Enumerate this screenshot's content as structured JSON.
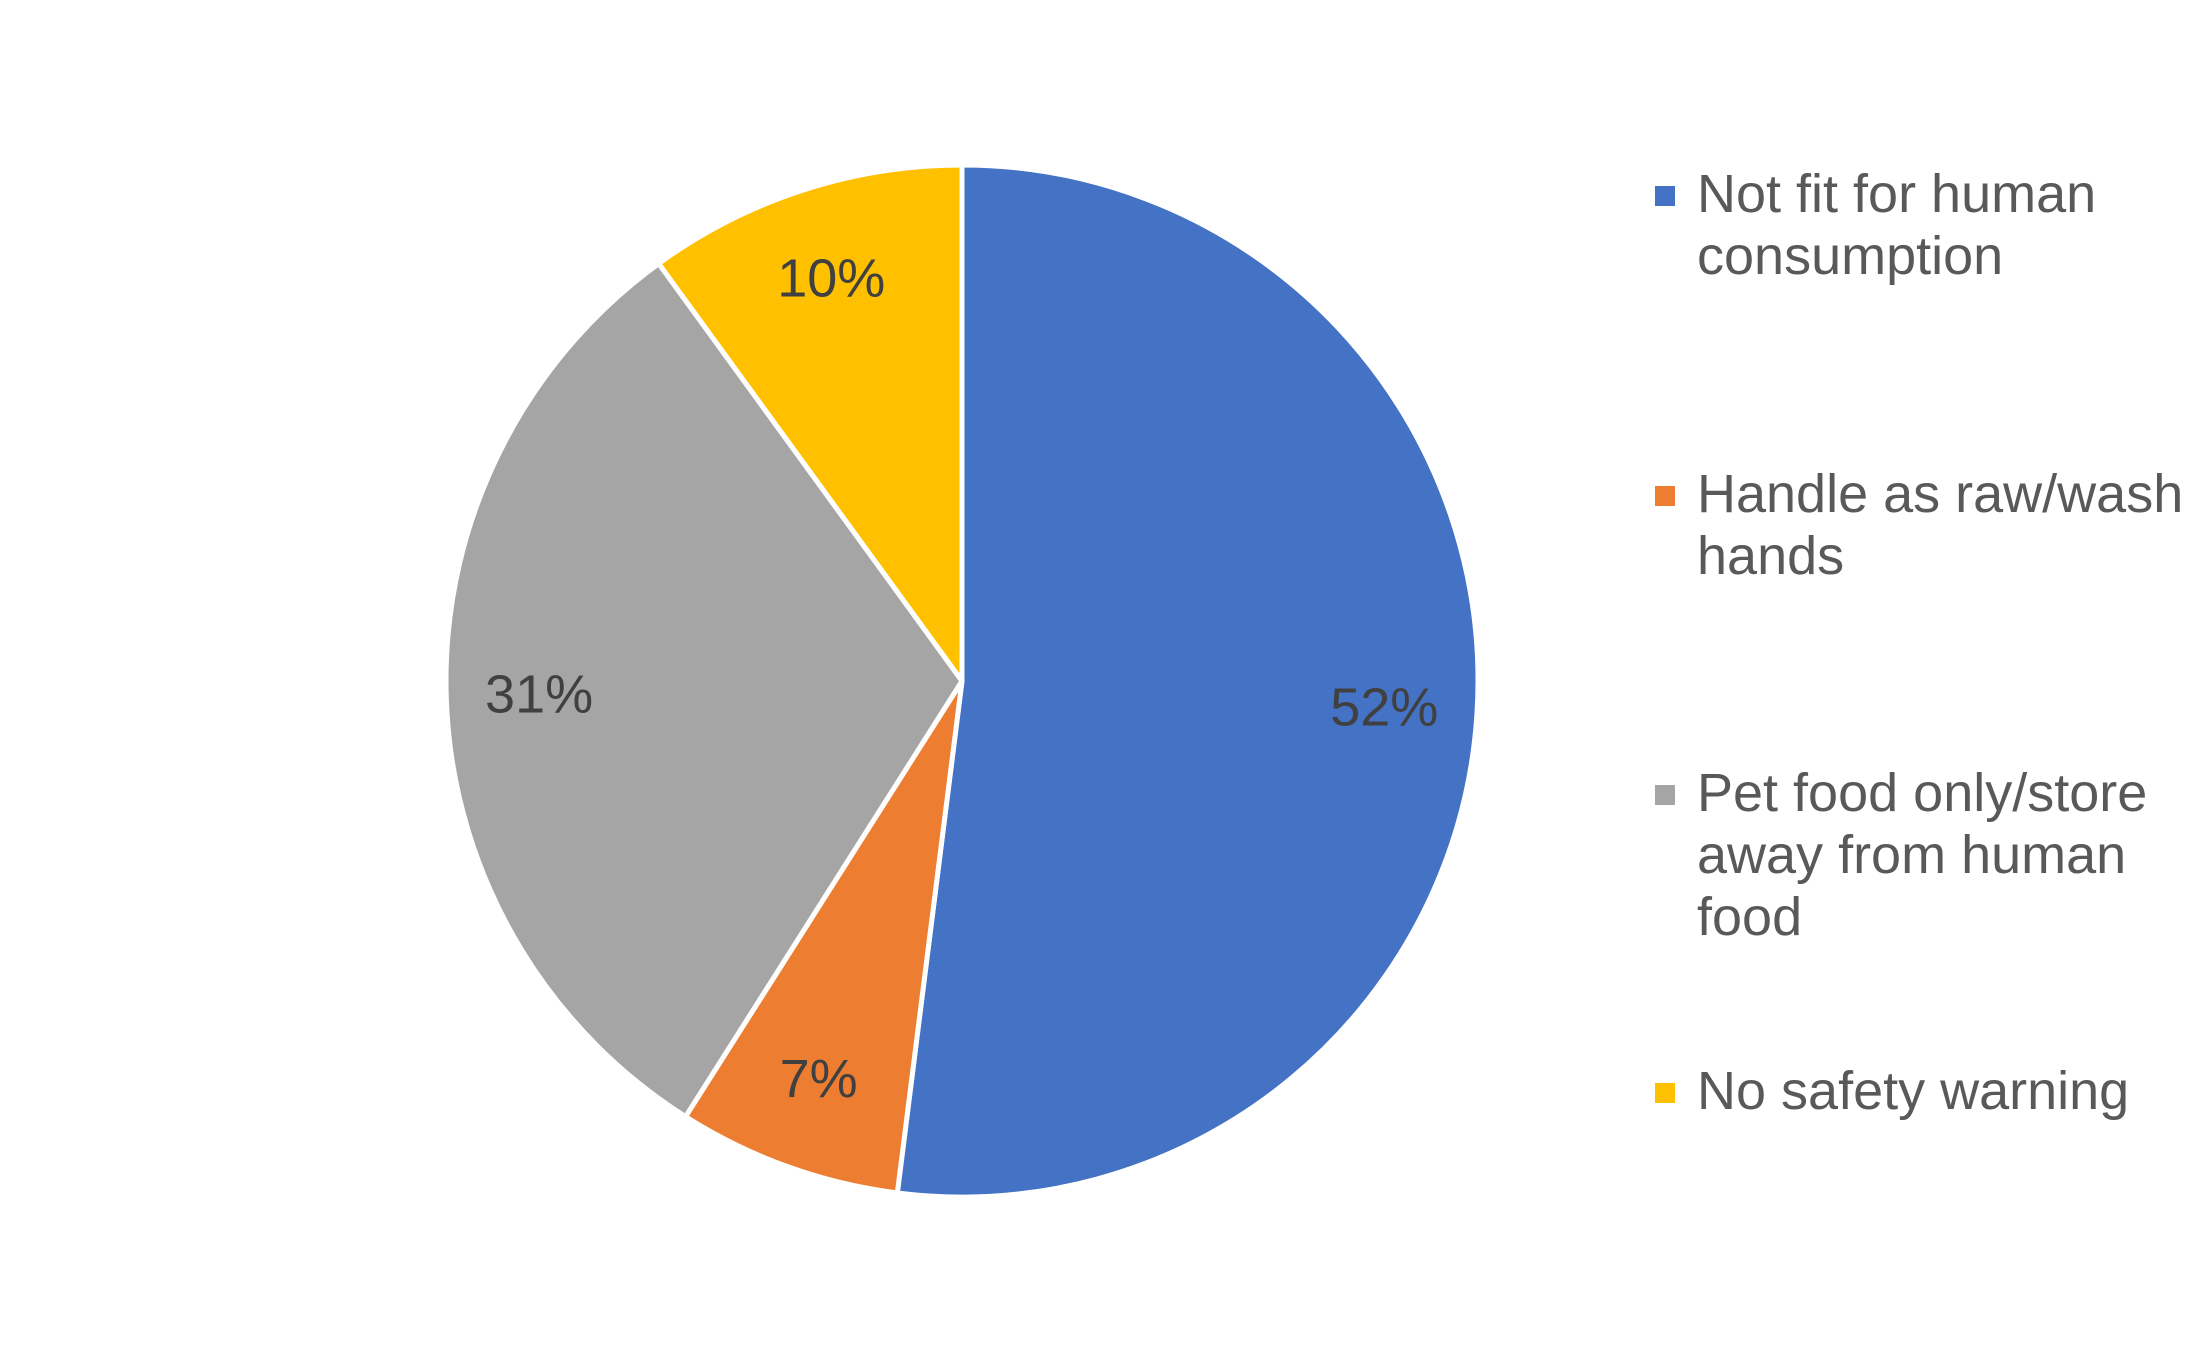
{
  "chart_data": {
    "type": "pie",
    "title": "",
    "start_angle_deg": 0,
    "direction": "clockwise",
    "legend_position": "right",
    "slices": [
      {
        "label": "Not fit for human consumption",
        "value": 52,
        "display": "52%",
        "color": "#4472C4"
      },
      {
        "label": "Handle as raw/wash hands",
        "value": 7,
        "display": "7%",
        "color": "#ED7D31"
      },
      {
        "label": "Pet food only/store away from human food",
        "value": 31,
        "display": "31%",
        "color": "#A5A5A5"
      },
      {
        "label": "No safety warning",
        "value": 10,
        "display": "10%",
        "color": "#FFC000"
      }
    ]
  }
}
